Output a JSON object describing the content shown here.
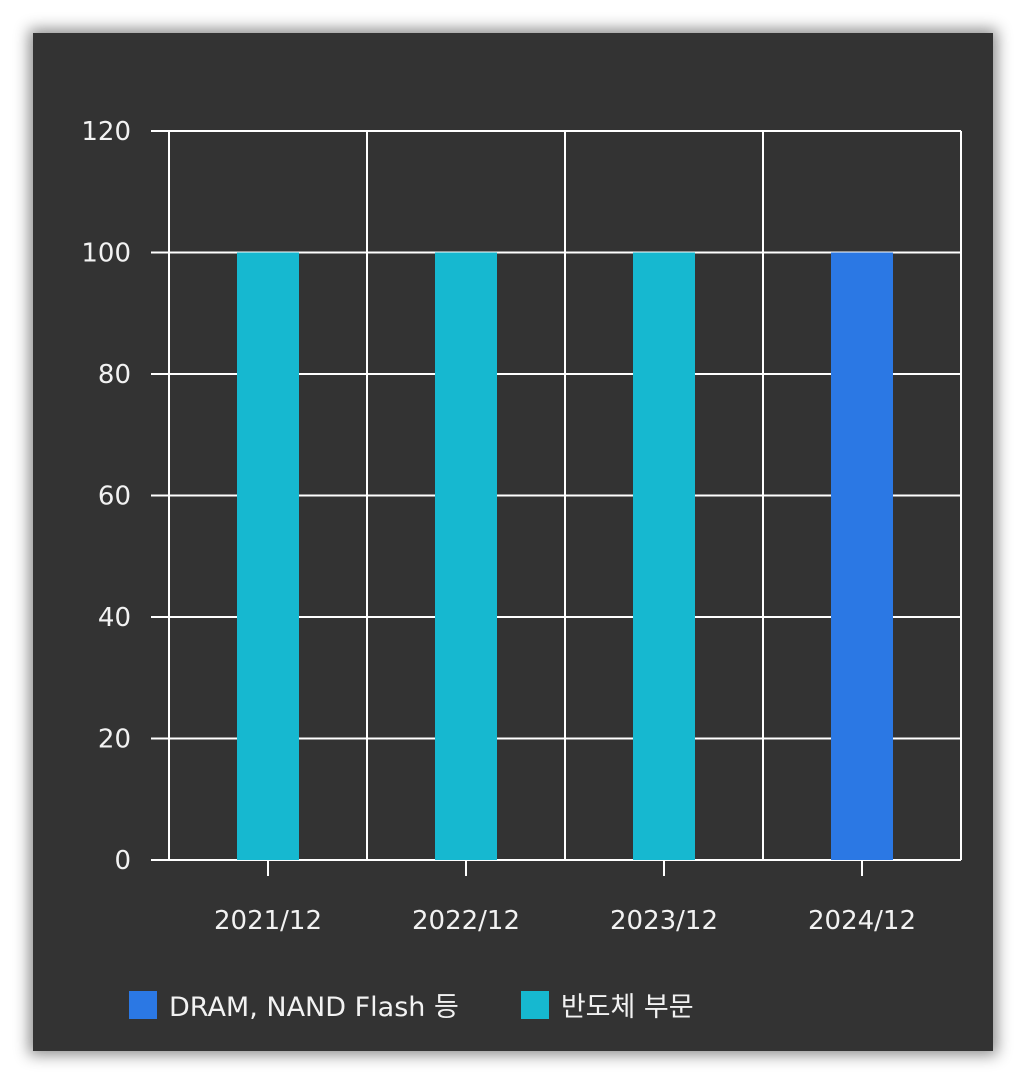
{
  "chart_data": {
    "type": "bar",
    "categories": [
      "2021/12",
      "2022/12",
      "2023/12",
      "2024/12"
    ],
    "series": [
      {
        "name": "DRAM, NAND Flash 등",
        "color": "#2b78e4",
        "values": [
          0,
          0,
          0,
          100
        ]
      },
      {
        "name": "반도체 부문",
        "color": "#16b8d0",
        "values": [
          100,
          100,
          100,
          0
        ]
      }
    ],
    "ylim": [
      0,
      120
    ],
    "yticks": [
      0,
      20,
      40,
      60,
      80,
      100,
      120
    ],
    "grid": true,
    "legend_position": "bottom-left",
    "stacked": true
  },
  "colors": {
    "background": "#333333",
    "grid": "#ffffff",
    "text": "#f2f2f2"
  }
}
